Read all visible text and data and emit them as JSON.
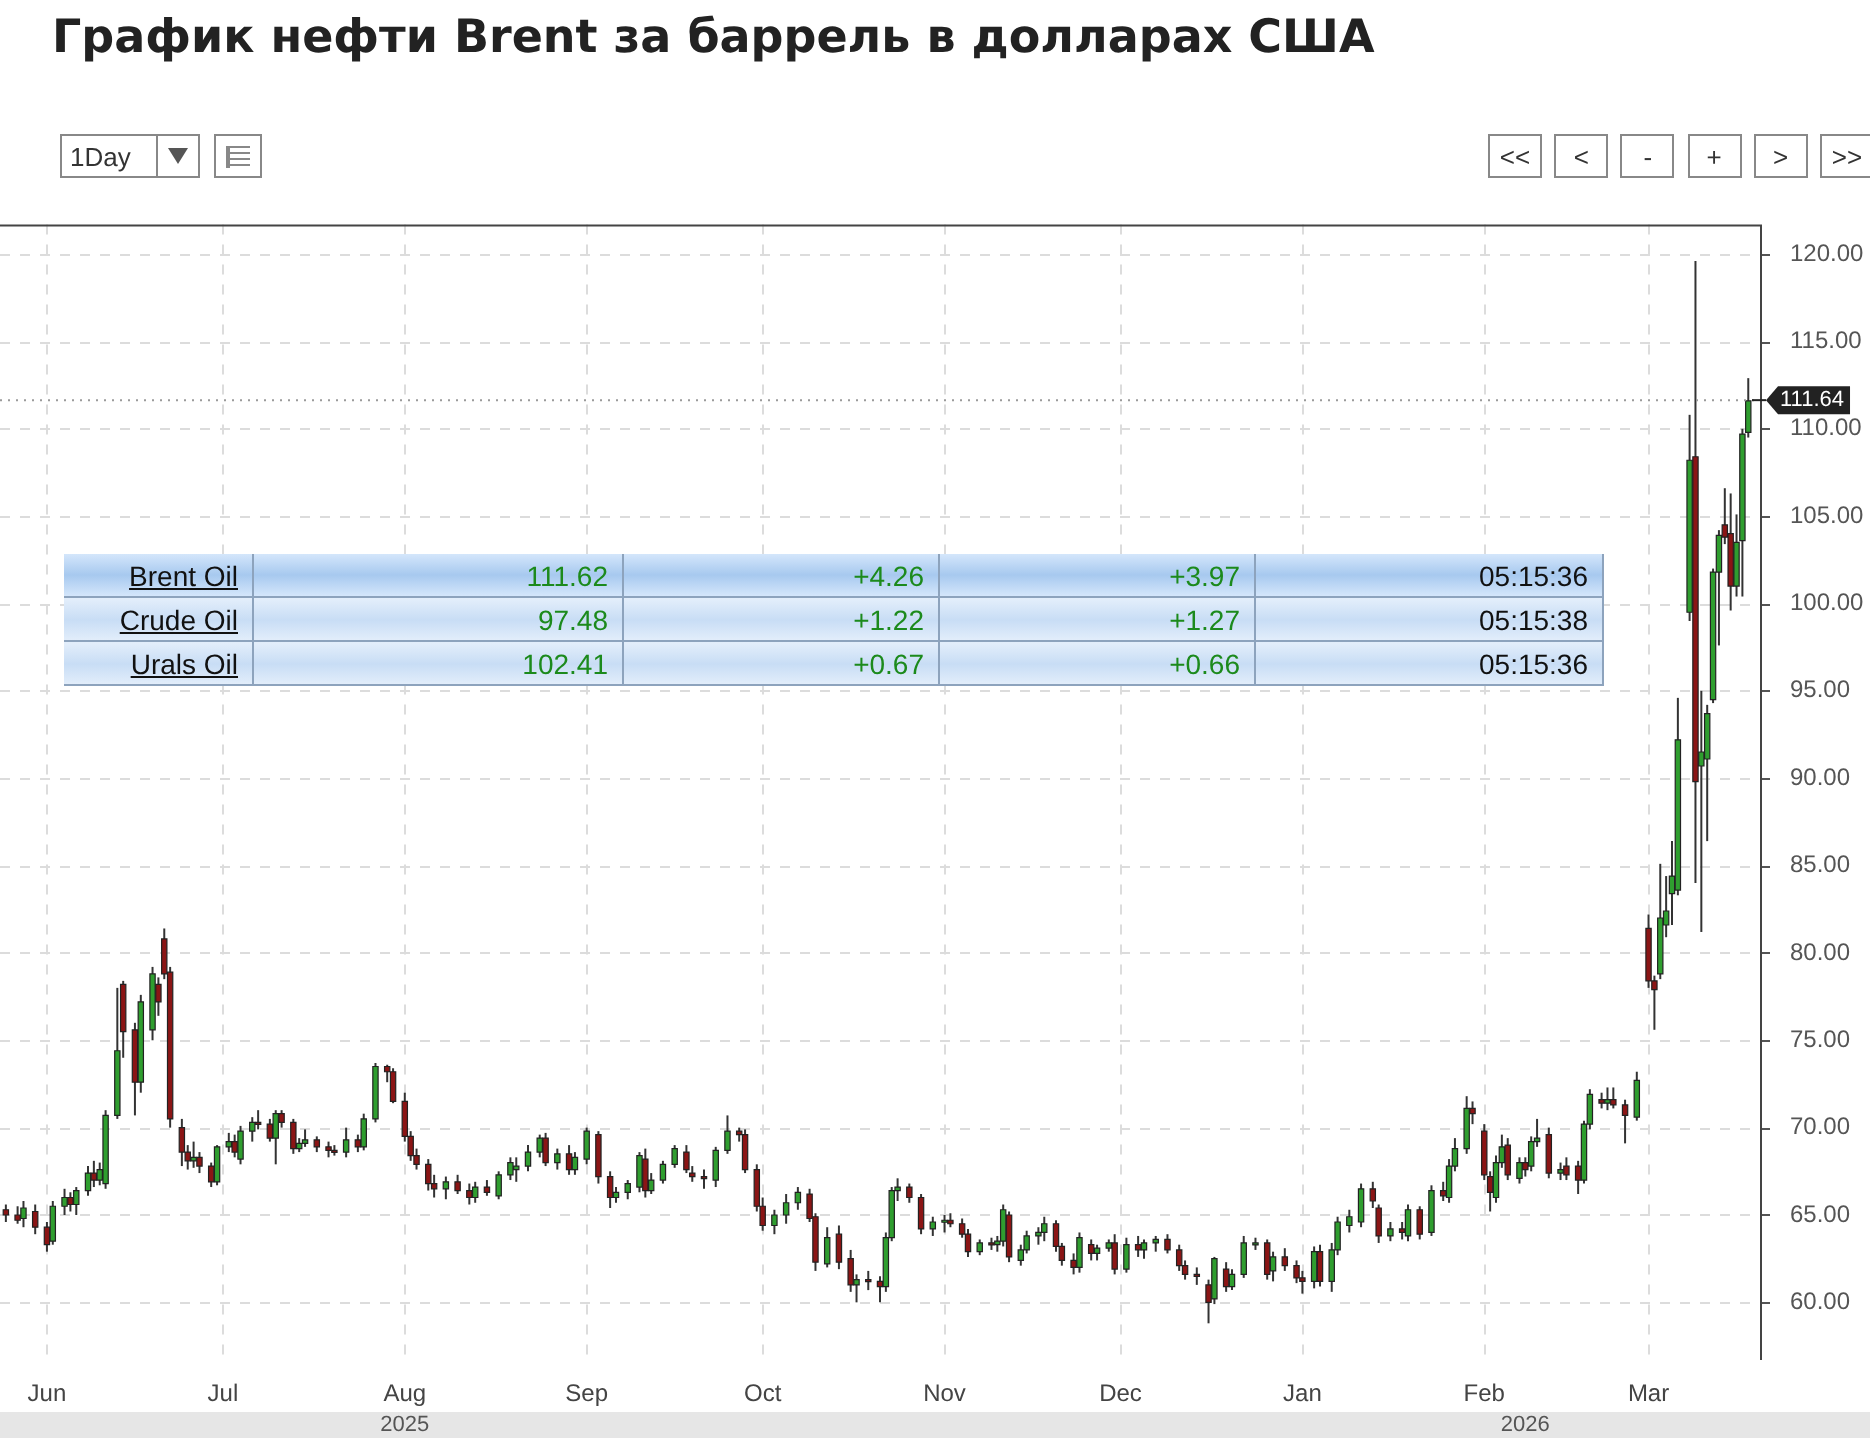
{
  "chart_data": [
    {
      "type": "candlestick",
      "title": "График нефти Brent за баррель в долларах США",
      "x": [
        "2025-05-25",
        "2025-05-27",
        "2025-05-28",
        "2025-05-30",
        "2025-06-01",
        "2025-06-02",
        "2025-06-04",
        "2025-06-05",
        "2025-06-06",
        "2025-06-08",
        "2025-06-09",
        "2025-06-10",
        "2025-06-11",
        "2025-06-13",
        "2025-06-14",
        "2025-06-16",
        "2025-06-17",
        "2025-06-19",
        "2025-06-20",
        "2025-06-21",
        "2025-06-22",
        "2025-06-24",
        "2025-06-25",
        "2025-06-26",
        "2025-06-27",
        "2025-06-29",
        "2025-06-30",
        "2025-07-02",
        "2025-07-03",
        "2025-07-04",
        "2025-07-06",
        "2025-07-07",
        "2025-07-09",
        "2025-07-10",
        "2025-07-11",
        "2025-07-13",
        "2025-07-14",
        "2025-07-15",
        "2025-07-17",
        "2025-07-19",
        "2025-07-20",
        "2025-07-22",
        "2025-07-24",
        "2025-07-25",
        "2025-07-27",
        "2025-07-29",
        "2025-07-30",
        "2025-08-01",
        "2025-08-02",
        "2025-08-03",
        "2025-08-05",
        "2025-08-06",
        "2025-08-08",
        "2025-08-10",
        "2025-08-12",
        "2025-08-13",
        "2025-08-15",
        "2025-08-17",
        "2025-08-19",
        "2025-08-20",
        "2025-08-22",
        "2025-08-24",
        "2025-08-25",
        "2025-08-27",
        "2025-08-29",
        "2025-08-30",
        "2025-09-01",
        "2025-09-03",
        "2025-09-05",
        "2025-09-06",
        "2025-09-08",
        "2025-09-10",
        "2025-09-11",
        "2025-09-12",
        "2025-09-14",
        "2025-09-16",
        "2025-09-18",
        "2025-09-19",
        "2025-09-21",
        "2025-09-23",
        "2025-09-25",
        "2025-09-27",
        "2025-09-28",
        "2025-09-30",
        "2025-10-01",
        "2025-10-03",
        "2025-10-05",
        "2025-10-07",
        "2025-10-09",
        "2025-10-10",
        "2025-10-12",
        "2025-10-14",
        "2025-10-16",
        "2025-10-17",
        "2025-10-19",
        "2025-10-21",
        "2025-10-22",
        "2025-10-23",
        "2025-10-24",
        "2025-10-26",
        "2025-10-28",
        "2025-10-30",
        "2025-11-01",
        "2025-11-02",
        "2025-11-04",
        "2025-11-05",
        "2025-11-07",
        "2025-11-09",
        "2025-11-10",
        "2025-11-11",
        "2025-11-12",
        "2025-11-14",
        "2025-11-15",
        "2025-11-17",
        "2025-11-18",
        "2025-11-20",
        "2025-11-21",
        "2025-11-23",
        "2025-11-24",
        "2025-11-26",
        "2025-11-27",
        "2025-11-29",
        "2025-11-30",
        "2025-12-02",
        "2025-12-04",
        "2025-12-05",
        "2025-12-07",
        "2025-12-09",
        "2025-12-11",
        "2025-12-12",
        "2025-12-14",
        "2025-12-16",
        "2025-12-17",
        "2025-12-19",
        "2025-12-20",
        "2025-12-22",
        "2025-12-24",
        "2025-12-26",
        "2025-12-27",
        "2025-12-29",
        "2025-12-31",
        "2026-01-01",
        "2026-01-03",
        "2026-01-04",
        "2026-01-06",
        "2026-01-07",
        "2026-01-09",
        "2026-01-11",
        "2026-01-13",
        "2026-01-14",
        "2026-01-16",
        "2026-01-18",
        "2026-01-19",
        "2026-01-21",
        "2026-01-23",
        "2026-01-25",
        "2026-01-26",
        "2026-01-27",
        "2026-01-29",
        "2026-01-30",
        "2026-02-01",
        "2026-02-02",
        "2026-02-03",
        "2026-02-04",
        "2026-02-05",
        "2026-02-07",
        "2026-02-08",
        "2026-02-09",
        "2026-02-10",
        "2026-02-12",
        "2026-02-14",
        "2026-02-15",
        "2026-02-17",
        "2026-02-18",
        "2026-02-19",
        "2026-02-21",
        "2026-02-22",
        "2026-02-23",
        "2026-02-25",
        "2026-02-27",
        "2026-03-01",
        "2026-03-02",
        "2026-03-03",
        "2026-03-04",
        "2026-03-05",
        "2026-03-06",
        "2026-03-08",
        "2026-03-09",
        "2026-03-10",
        "2026-03-11",
        "2026-03-12",
        "2026-03-13",
        "2026-03-14",
        "2026-03-15",
        "2026-03-16",
        "2026-03-17",
        "2026-03-18"
      ],
      "ohlc": [
        [
          65.3,
          65.6,
          64.6,
          65.0
        ],
        [
          65.0,
          65.5,
          64.5,
          64.7
        ],
        [
          64.8,
          65.8,
          64.3,
          65.4
        ],
        [
          65.2,
          65.6,
          63.9,
          64.3
        ],
        [
          64.3,
          64.6,
          62.9,
          63.3
        ],
        [
          63.5,
          65.8,
          63.3,
          65.5
        ],
        [
          65.5,
          66.5,
          65.0,
          66.0
        ],
        [
          66.0,
          66.3,
          65.2,
          65.6
        ],
        [
          65.6,
          66.6,
          65.0,
          66.4
        ],
        [
          66.4,
          67.8,
          66.1,
          67.4
        ],
        [
          67.4,
          68.1,
          66.6,
          67.0
        ],
        [
          67.0,
          68.0,
          66.7,
          67.6
        ],
        [
          66.8,
          71.0,
          66.5,
          70.7
        ],
        [
          70.7,
          78.0,
          70.5,
          74.4
        ],
        [
          78.2,
          78.4,
          74.0,
          75.5
        ],
        [
          75.6,
          76.0,
          70.7,
          72.6
        ],
        [
          72.6,
          77.6,
          72.0,
          77.2
        ],
        [
          75.6,
          79.2,
          75.0,
          78.8
        ],
        [
          78.2,
          78.6,
          76.4,
          77.2
        ],
        [
          80.8,
          81.4,
          78.5,
          78.8
        ],
        [
          78.9,
          79.2,
          70.0,
          70.5
        ],
        [
          70.0,
          70.5,
          67.8,
          68.6
        ],
        [
          68.6,
          69.0,
          67.6,
          68.1
        ],
        [
          68.1,
          69.2,
          67.7,
          68.3
        ],
        [
          68.3,
          68.6,
          67.4,
          67.8
        ],
        [
          67.8,
          68.0,
          66.6,
          66.9
        ],
        [
          66.9,
          69.0,
          66.7,
          68.9
        ],
        [
          68.9,
          69.7,
          68.6,
          69.2
        ],
        [
          69.2,
          69.6,
          68.3,
          68.6
        ],
        [
          68.2,
          70.1,
          67.9,
          69.8
        ],
        [
          69.8,
          70.6,
          69.2,
          70.3
        ],
        [
          70.3,
          71.0,
          69.9,
          70.2
        ],
        [
          70.2,
          70.5,
          69.2,
          69.4
        ],
        [
          69.4,
          71.0,
          67.9,
          70.8
        ],
        [
          70.8,
          71.0,
          70.0,
          70.3
        ],
        [
          70.3,
          70.5,
          68.5,
          68.8
        ],
        [
          68.8,
          69.4,
          68.6,
          69.1
        ],
        [
          69.1,
          69.9,
          68.9,
          69.3
        ],
        [
          69.3,
          69.5,
          68.6,
          68.9
        ],
        [
          68.9,
          69.2,
          68.3,
          68.7
        ],
        [
          68.7,
          69.0,
          68.4,
          68.6
        ],
        [
          68.6,
          70.0,
          68.3,
          69.3
        ],
        [
          69.3,
          69.6,
          68.6,
          68.9
        ],
        [
          68.9,
          70.8,
          68.7,
          70.5
        ],
        [
          70.5,
          73.7,
          70.3,
          73.5
        ],
        [
          73.5,
          73.6,
          72.6,
          73.2
        ],
        [
          73.2,
          73.4,
          71.4,
          71.5
        ],
        [
          71.5,
          72.0,
          69.2,
          69.5
        ],
        [
          69.5,
          69.8,
          68.1,
          68.4
        ],
        [
          68.4,
          68.8,
          67.6,
          67.9
        ],
        [
          67.9,
          68.2,
          66.4,
          66.8
        ],
        [
          66.8,
          67.3,
          66.0,
          66.5
        ],
        [
          66.5,
          67.2,
          65.9,
          66.9
        ],
        [
          66.9,
          67.3,
          66.2,
          66.4
        ],
        [
          66.4,
          66.8,
          65.6,
          66.0
        ],
        [
          66.0,
          66.9,
          65.7,
          66.6
        ],
        [
          66.6,
          67.0,
          66.1,
          66.3
        ],
        [
          66.1,
          67.5,
          65.9,
          67.3
        ],
        [
          67.3,
          68.3,
          67.0,
          68.0
        ],
        [
          67.6,
          68.3,
          66.9,
          67.8
        ],
        [
          67.8,
          69.0,
          67.5,
          68.6
        ],
        [
          68.6,
          69.6,
          68.3,
          69.4
        ],
        [
          69.4,
          69.7,
          67.8,
          68.0
        ],
        [
          68.0,
          68.8,
          67.6,
          68.5
        ],
        [
          68.5,
          69.0,
          67.3,
          67.6
        ],
        [
          67.6,
          68.6,
          67.3,
          68.3
        ],
        [
          68.2,
          70.0,
          67.9,
          69.8
        ],
        [
          69.6,
          69.8,
          66.8,
          67.2
        ],
        [
          67.2,
          67.5,
          65.4,
          66.0
        ],
        [
          66.0,
          66.6,
          65.7,
          66.3
        ],
        [
          66.3,
          67.0,
          65.9,
          66.8
        ],
        [
          66.6,
          68.6,
          66.3,
          68.4
        ],
        [
          68.2,
          68.8,
          66.0,
          66.4
        ],
        [
          66.4,
          67.4,
          66.2,
          67.0
        ],
        [
          67.0,
          68.1,
          66.8,
          67.9
        ],
        [
          67.9,
          69.0,
          67.7,
          68.8
        ],
        [
          68.6,
          69.0,
          67.4,
          67.6
        ],
        [
          67.4,
          67.8,
          66.9,
          67.2
        ],
        [
          67.2,
          67.6,
          66.5,
          67.1
        ],
        [
          67.0,
          68.9,
          66.6,
          68.7
        ],
        [
          68.7,
          70.7,
          68.5,
          69.8
        ],
        [
          69.8,
          70.0,
          69.2,
          69.6
        ],
        [
          69.6,
          69.9,
          67.4,
          67.6
        ],
        [
          67.6,
          67.9,
          65.2,
          65.5
        ],
        [
          65.5,
          66.0,
          64.1,
          64.4
        ],
        [
          64.4,
          65.3,
          63.9,
          65.0
        ],
        [
          65.0,
          66.2,
          64.5,
          65.7
        ],
        [
          65.7,
          66.6,
          65.3,
          66.3
        ],
        [
          66.2,
          66.5,
          64.6,
          64.8
        ],
        [
          64.9,
          65.1,
          61.8,
          62.3
        ],
        [
          62.2,
          64.3,
          62.0,
          63.7
        ],
        [
          63.9,
          64.4,
          61.9,
          62.3
        ],
        [
          62.5,
          63.0,
          60.6,
          61.0
        ],
        [
          61.0,
          61.6,
          60.0,
          61.3
        ],
        [
          61.3,
          61.8,
          60.7,
          61.2
        ],
        [
          61.2,
          61.5,
          60.0,
          60.9
        ],
        [
          60.9,
          64.0,
          60.6,
          63.7
        ],
        [
          63.7,
          66.6,
          63.5,
          66.4
        ],
        [
          66.4,
          67.1,
          65.8,
          66.6
        ],
        [
          66.6,
          66.8,
          65.7,
          66.0
        ],
        [
          66.0,
          66.2,
          63.9,
          64.2
        ],
        [
          64.2,
          64.9,
          63.8,
          64.6
        ],
        [
          64.6,
          65.0,
          64.0,
          64.7
        ],
        [
          64.7,
          65.1,
          64.3,
          64.5
        ],
        [
          64.5,
          64.8,
          63.7,
          63.9
        ],
        [
          63.9,
          64.2,
          62.6,
          62.9
        ],
        [
          62.9,
          63.6,
          62.7,
          63.4
        ],
        [
          63.4,
          63.7,
          63.0,
          63.3
        ],
        [
          63.3,
          63.8,
          62.9,
          63.5
        ],
        [
          63.5,
          65.6,
          63.2,
          65.3
        ],
        [
          65.0,
          65.2,
          62.3,
          62.6
        ],
        [
          62.4,
          63.3,
          62.1,
          63.0
        ],
        [
          63.0,
          64.1,
          62.8,
          63.8
        ],
        [
          63.8,
          64.3,
          63.3,
          64.0
        ],
        [
          64.0,
          64.9,
          63.5,
          64.5
        ],
        [
          64.5,
          64.7,
          62.9,
          63.2
        ],
        [
          63.2,
          63.4,
          62.1,
          62.4
        ],
        [
          62.4,
          62.8,
          61.6,
          62.0
        ],
        [
          62.0,
          64.0,
          61.7,
          63.7
        ],
        [
          63.3,
          63.6,
          62.4,
          62.8
        ],
        [
          62.8,
          63.3,
          62.4,
          63.1
        ],
        [
          63.1,
          63.6,
          62.9,
          63.4
        ],
        [
          63.4,
          63.9,
          61.6,
          61.9
        ],
        [
          61.9,
          63.7,
          61.7,
          63.3
        ],
        [
          63.3,
          63.8,
          62.6,
          63.0
        ],
        [
          63.0,
          63.6,
          62.5,
          63.4
        ],
        [
          63.4,
          63.8,
          62.9,
          63.6
        ],
        [
          63.6,
          63.9,
          62.8,
          63.0
        ],
        [
          63.0,
          63.3,
          61.8,
          62.1
        ],
        [
          62.1,
          62.4,
          61.3,
          61.6
        ],
        [
          61.6,
          62.0,
          61.0,
          61.5
        ],
        [
          61.0,
          61.3,
          58.8,
          60.0
        ],
        [
          60.2,
          62.6,
          59.9,
          62.5
        ],
        [
          61.9,
          62.3,
          60.6,
          60.9
        ],
        [
          60.9,
          61.9,
          60.7,
          61.6
        ],
        [
          61.6,
          63.8,
          61.4,
          63.4
        ],
        [
          63.3,
          63.7,
          63.0,
          63.4
        ],
        [
          63.4,
          63.6,
          61.3,
          61.6
        ],
        [
          61.8,
          62.9,
          61.2,
          62.6
        ],
        [
          62.6,
          63.1,
          61.8,
          62.1
        ],
        [
          62.1,
          62.4,
          61.1,
          61.4
        ],
        [
          61.4,
          61.8,
          60.5,
          61.2
        ],
        [
          61.2,
          63.2,
          60.8,
          62.9
        ],
        [
          62.9,
          63.3,
          60.9,
          61.2
        ],
        [
          61.2,
          63.4,
          60.6,
          63.0
        ],
        [
          63.0,
          64.9,
          62.7,
          64.6
        ],
        [
          64.4,
          65.3,
          64.0,
          64.9
        ],
        [
          64.6,
          66.8,
          64.3,
          66.5
        ],
        [
          66.5,
          66.9,
          65.4,
          65.8
        ],
        [
          65.4,
          65.6,
          63.4,
          63.8
        ],
        [
          63.8,
          64.6,
          63.5,
          64.2
        ],
        [
          64.2,
          64.6,
          63.6,
          64.0
        ],
        [
          63.8,
          65.6,
          63.5,
          65.3
        ],
        [
          65.3,
          65.5,
          63.6,
          63.9
        ],
        [
          64.0,
          66.7,
          63.8,
          66.4
        ],
        [
          66.4,
          66.9,
          65.8,
          66.1
        ],
        [
          66.0,
          68.2,
          65.7,
          67.8
        ],
        [
          67.8,
          69.4,
          67.5,
          68.8
        ],
        [
          68.8,
          71.8,
          68.5,
          71.1
        ],
        [
          71.1,
          71.5,
          70.2,
          70.8
        ],
        [
          69.8,
          70.2,
          67.0,
          67.3
        ],
        [
          67.2,
          67.5,
          65.2,
          66.3
        ],
        [
          66.0,
          68.4,
          65.7,
          68.0
        ],
        [
          68.0,
          69.6,
          67.7,
          68.9
        ],
        [
          69.0,
          69.4,
          67.0,
          67.3
        ],
        [
          67.1,
          68.3,
          66.8,
          68.0
        ],
        [
          68.0,
          68.3,
          67.2,
          67.6
        ],
        [
          67.8,
          69.5,
          67.5,
          69.2
        ],
        [
          69.2,
          70.5,
          68.9,
          69.4
        ],
        [
          69.6,
          70.0,
          67.1,
          67.4
        ],
        [
          67.4,
          68.0,
          67.0,
          67.6
        ],
        [
          67.8,
          68.3,
          67.0,
          67.3
        ],
        [
          67.8,
          68.1,
          66.2,
          67.0
        ],
        [
          67.0,
          70.4,
          66.8,
          70.2
        ],
        [
          70.2,
          72.2,
          69.9,
          71.9
        ],
        [
          71.6,
          72.0,
          71.1,
          71.4
        ],
        [
          71.4,
          72.3,
          71.0,
          71.6
        ],
        [
          71.6,
          72.3,
          71.1,
          71.3
        ],
        [
          71.3,
          71.6,
          69.1,
          70.7
        ],
        [
          70.6,
          73.2,
          70.4,
          72.7
        ],
        [
          81.4,
          82.2,
          78.0,
          78.4
        ],
        [
          78.4,
          78.7,
          75.6,
          77.9
        ],
        [
          78.8,
          85.1,
          78.5,
          82.0
        ],
        [
          81.6,
          84.4,
          80.9,
          82.4
        ],
        [
          83.4,
          86.4,
          81.6,
          84.4
        ],
        [
          83.6,
          94.6,
          83.3,
          92.2
        ],
        [
          99.5,
          110.8,
          99.0,
          108.2
        ],
        [
          108.4,
          119.6,
          84.0,
          89.8
        ],
        [
          90.7,
          95.0,
          81.2,
          91.5
        ],
        [
          91.1,
          94.2,
          86.4,
          93.7
        ],
        [
          94.5,
          102.0,
          94.3,
          101.8
        ],
        [
          101.8,
          104.2,
          97.6,
          103.9
        ],
        [
          104.5,
          106.6,
          103.4,
          103.8
        ],
        [
          104.0,
          106.3,
          99.6,
          101.0
        ],
        [
          101.0,
          105.1,
          100.4,
          103.5
        ],
        [
          103.6,
          110.0,
          100.4,
          109.7
        ],
        [
          109.8,
          112.9,
          109.5,
          111.6
        ]
      ],
      "xlim": [
        "2025-05-24",
        "2026-03-20"
      ],
      "xticks": [
        {
          "value": "2025-06-01",
          "label": "Jun"
        },
        {
          "value": "2025-07-01",
          "label": "Jul"
        },
        {
          "value": "2025-08-01",
          "label": "Aug"
        },
        {
          "value": "2025-09-01",
          "label": "Sep"
        },
        {
          "value": "2025-10-01",
          "label": "Oct"
        },
        {
          "value": "2025-11-01",
          "label": "Nov"
        },
        {
          "value": "2025-12-01",
          "label": "Dec"
        },
        {
          "value": "2026-01-01",
          "label": "Jan"
        },
        {
          "value": "2026-02-01",
          "label": "Feb"
        },
        {
          "value": "2026-03-01",
          "label": "Mar"
        }
      ],
      "ylim": [
        56.7,
        121.7
      ],
      "yticks": [
        {
          "value": 60,
          "label": "60.00"
        },
        {
          "value": 65,
          "label": "65.00"
        },
        {
          "value": 70,
          "label": "70.00"
        },
        {
          "value": 75,
          "label": "75.00"
        },
        {
          "value": 80,
          "label": "80.00"
        },
        {
          "value": 85,
          "label": "85.00"
        },
        {
          "value": 90,
          "label": "90.00"
        },
        {
          "value": 95,
          "label": "95.00"
        },
        {
          "value": 100,
          "label": "100.00"
        },
        {
          "value": 105,
          "label": "105.00"
        },
        {
          "value": 110,
          "label": "110.00"
        },
        {
          "value": 115,
          "label": "115.00"
        },
        {
          "value": 120,
          "label": "120.00"
        }
      ],
      "grid": true,
      "x2lim": [
        "2025-05-24",
        "2026-03-20"
      ],
      "x2ticks": [
        {
          "value": "2025-08-01",
          "label": "2025"
        },
        {
          "value": "2026-02-08",
          "label": "2026"
        }
      ],
      "ref_lines": [
        {
          "axis": "y",
          "value": 111.64,
          "label": "111.64"
        }
      ]
    },
    {
      "type": "other",
      "y_categories": [
        "Brent Oil",
        "Crude Oil",
        "Urals Oil"
      ],
      "cell_labels": [
        [
          "111.62",
          "+4.26",
          "+3.97",
          "05:15:36"
        ],
        [
          "97.48",
          "+1.22",
          "+1.27",
          "05:15:38"
        ],
        [
          "102.41",
          "+0.67",
          "+0.66",
          "05:15:36"
        ]
      ]
    },
    {
      "type": "other",
      "categories": [
        "1Day",
        "<<",
        "<",
        "-",
        "+",
        ">",
        ">>"
      ]
    }
  ]
}
